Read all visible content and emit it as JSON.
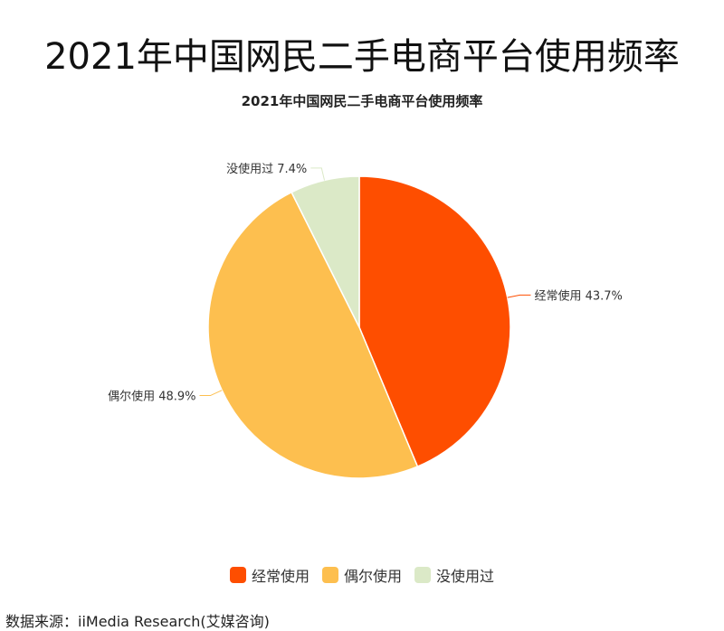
{
  "page": {
    "main_title": "2021年中国网民二手电商平台使用频率",
    "source": "数据来源：iiMedia Research(艾媒咨询)"
  },
  "chart_data": {
    "type": "pie",
    "title": "2021年中国网民二手电商平台使用频率",
    "unit": "%",
    "slices": [
      {
        "name": "经常使用",
        "value": 43.7,
        "label": "经常使用 43.7%",
        "color": "#fe4e00"
      },
      {
        "name": "偶尔使用",
        "value": 48.9,
        "label": "偶尔使用 48.9%",
        "color": "#fdbf4f"
      },
      {
        "name": "没使用过",
        "value": 7.4,
        "label": "没使用过 7.4%",
        "color": "#dbe9c7"
      }
    ],
    "legend": {
      "position": "bottom",
      "items": [
        "经常使用",
        "偶尔使用",
        "没使用过"
      ]
    }
  }
}
